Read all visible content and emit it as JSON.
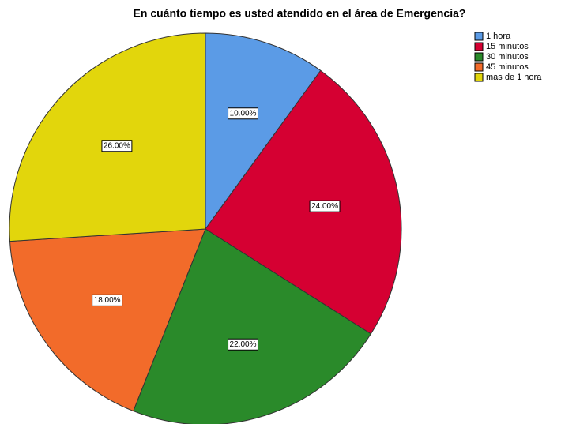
{
  "chart_data": {
    "type": "pie",
    "title": "En cuánto tiempo es usted atendido en el área de Emergencia?",
    "categories": [
      "1 hora",
      "15 minutos",
      "30 minutos",
      "45 minutos",
      "mas de 1 hora"
    ],
    "values": [
      10,
      24,
      22,
      18,
      26
    ],
    "value_labels": [
      "10.00%",
      "24.00%",
      "22.00%",
      "18.00%",
      "26.00%"
    ],
    "colors": [
      "#5b9be6",
      "#d50032",
      "#2a8a2a",
      "#f26b2a",
      "#e2d60c"
    ],
    "legend": "top-right"
  }
}
